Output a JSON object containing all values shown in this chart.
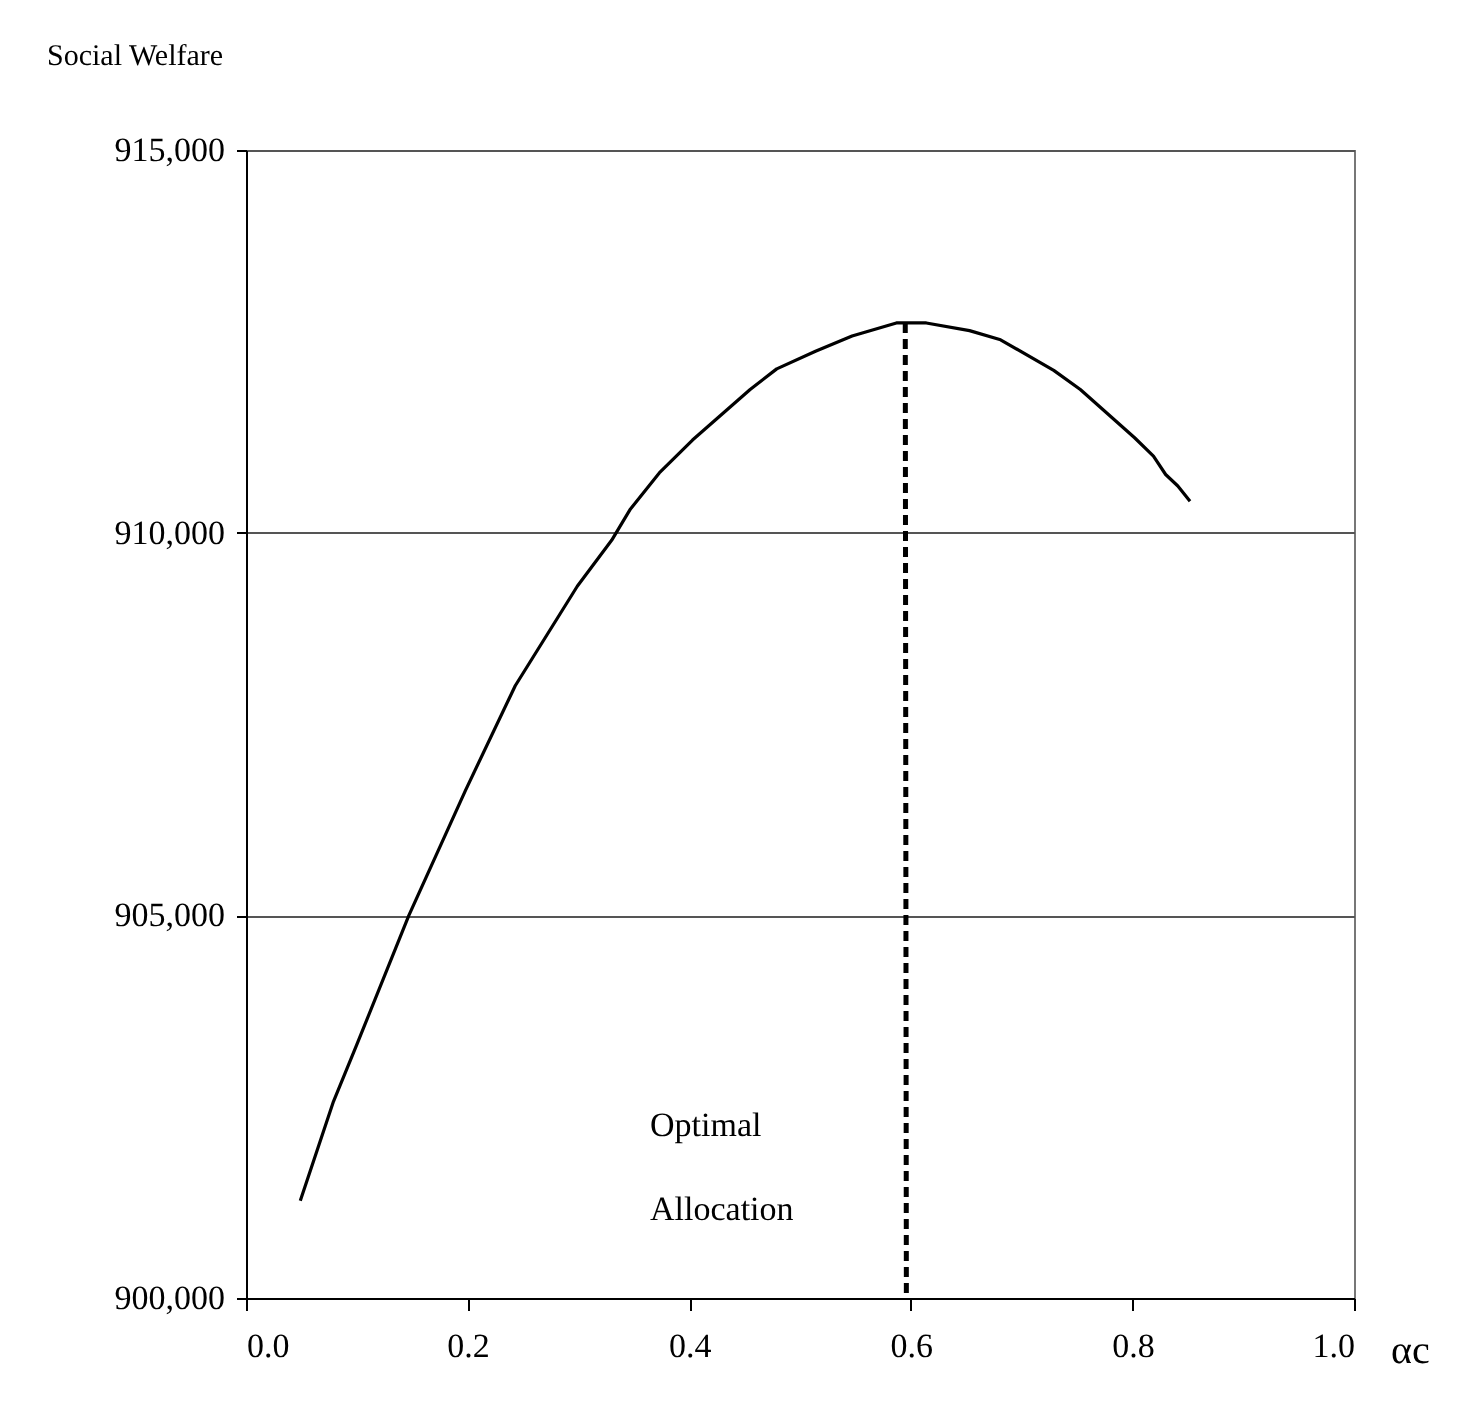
{
  "chart_data": {
    "type": "line",
    "ylabel": "Social Welfare",
    "xlabel": "αc",
    "xlim": [
      0,
      1
    ],
    "xticks": [
      {
        "value": 0,
        "label": "0.0"
      },
      {
        "value": 0.2,
        "label": "0.2"
      },
      {
        "value": 0.4,
        "label": "0.4"
      },
      {
        "value": 0.6,
        "label": "0.6"
      },
      {
        "value": 0.8,
        "label": "0.8"
      },
      {
        "value": 1,
        "label": "1.0"
      }
    ],
    "ylim": [
      900000,
      915000
    ],
    "yticks": [
      {
        "value": 900000,
        "label": "900,000"
      },
      {
        "value": 905000,
        "label": "905,000"
      },
      {
        "value": 910000,
        "label": "910,000"
      },
      {
        "value": 915000,
        "label": "915,000"
      }
    ],
    "grid": "y",
    "marker": "none",
    "annotations": [
      "Optimal",
      "Allocation"
    ],
    "series": [
      {
        "color": "#000000",
        "line_style": "solid",
        "x": [
          0.049,
          0.079,
          0.1,
          0.147,
          0.198,
          0.243,
          0.299,
          0.33,
          0.347,
          0.373,
          0.403,
          0.455,
          0.479,
          0.514,
          0.547,
          0.587,
          0.614,
          0.653,
          0.681,
          0.729,
          0.753,
          0.802,
          0.819,
          0.83,
          0.841,
          0.852
        ],
        "values": [
          901270,
          902570,
          903310,
          905000,
          906630,
          908000,
          909300,
          909900,
          910310,
          910780,
          911210,
          911870,
          912140,
          912370,
          912570,
          912740,
          912740,
          912640,
          912520,
          912120,
          911870,
          911240,
          911000,
          910760,
          910610,
          910410
        ]
      },
      {
        "color": "#000000",
        "line_style": "dashed",
        "x": [
          0.595,
          0.596
        ],
        "values": [
          912740,
          900000
        ]
      }
    ]
  }
}
